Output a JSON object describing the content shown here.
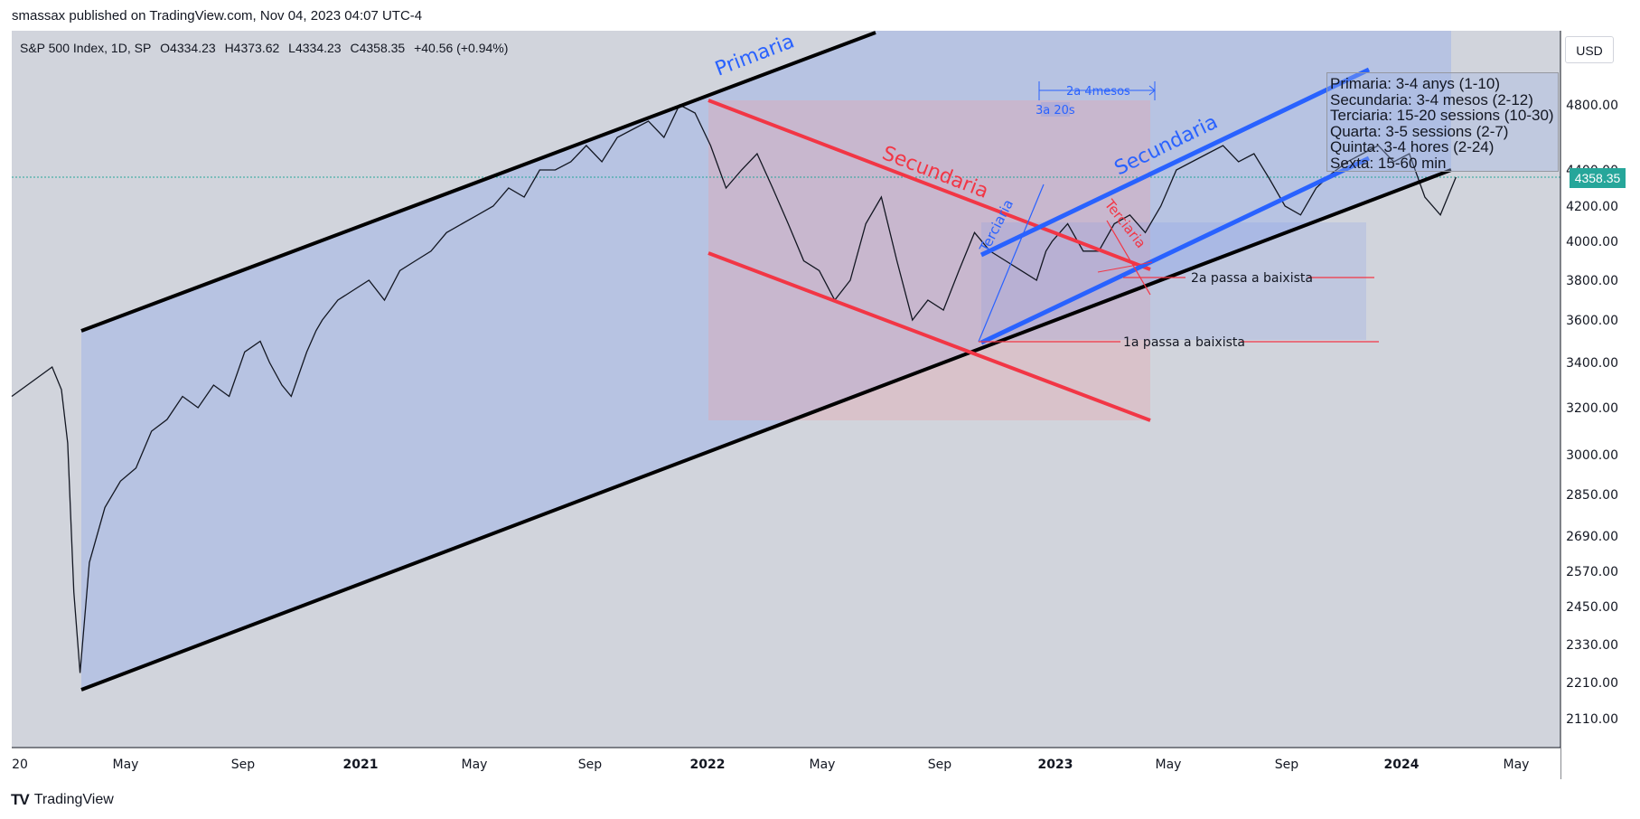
{
  "header": {
    "published_by": "smassax published on TradingView.com, Nov 04, 2023 04:07 UTC-4"
  },
  "legend": {
    "symbol": "S&P 500 Index, 1D, SP",
    "open": "O4334.23",
    "high": "H4373.62",
    "low": "L4334.23",
    "close": "C4358.35",
    "change": "+40.56 (+0.94%)"
  },
  "currency_button": "USD",
  "last_price": "4358.35",
  "info_box": [
    "Primaria: 3-4 anys (1-10)",
    "Secundaria: 3-4 mesos (2-12)",
    "Terciaria: 15-20 sessions (10-30)",
    "Quarta: 3-5 sessions (2-7)",
    "Quinta: 3-4 hores (2-24)",
    "Sexta: 15-60 min"
  ],
  "annotations": {
    "primaria": "Primaria",
    "secundaria_red": "Secundaria",
    "secundaria_blue": "Secundaria",
    "terciaria_blue": "Terciaria",
    "terciaria_red": "Terciaria",
    "range_2a": "2a 4mesos",
    "range_3a": "3a 20s",
    "break_1": "1a passa a baixista",
    "break_2": "2a passa a baixista"
  },
  "colors": {
    "primary": "#000000",
    "secondary_down": "#f23645",
    "secondary_up": "#2962ff",
    "up_badge": "#26a69a",
    "pane_bg": "#d1d4dc"
  },
  "footer": {
    "brand": "TradingView"
  },
  "chart_data": {
    "type": "line",
    "title": "S&P 500 Index, 1D, SP",
    "x_tick_labels": [
      "20",
      "May",
      "Sep",
      "2021",
      "May",
      "Sep",
      "2022",
      "May",
      "Sep",
      "2023",
      "May",
      "Sep",
      "2024",
      "May"
    ],
    "y_tick_labels": [
      "2110.00",
      "2210.00",
      "2330.00",
      "2450.00",
      "2570.00",
      "2690.00",
      "2850.00",
      "3000.00",
      "3200.00",
      "3400.00",
      "3600.00",
      "3800.00",
      "4000.00",
      "4200.00",
      "4400.00",
      "4800.00"
    ],
    "x_unit": "months since Jan 2020",
    "series": [
      {
        "name": "S&P 500",
        "x": [
          0,
          0.5,
          1,
          1.3,
          1.6,
          1.8,
          2.0,
          2.2,
          2.5,
          3,
          3.5,
          4,
          4.5,
          5,
          5.5,
          6,
          6.5,
          7,
          7.5,
          8,
          8.3,
          8.7,
          9,
          9.5,
          9.8,
          10,
          10.5,
          11,
          11.5,
          12,
          12.5,
          13,
          13.5,
          14,
          14.5,
          15,
          15.5,
          16,
          16.5,
          17,
          17.5,
          18,
          18.5,
          19,
          19.5,
          20,
          20.5,
          21,
          21.5,
          22,
          22.5,
          23,
          23.5,
          24,
          24.5,
          25,
          25.5,
          26,
          26.5,
          27,
          27.5,
          28,
          28.5,
          29,
          29.5,
          30,
          30.5,
          31,
          31.5,
          32,
          32.5,
          33,
          33.3,
          33.5,
          34,
          34.5,
          35,
          35.5,
          36,
          36.5,
          37,
          37.5,
          38,
          38.5,
          39,
          39.5,
          40,
          40.5,
          41,
          41.5,
          42,
          42.5,
          43,
          43.5,
          44,
          44.5,
          45,
          45.5,
          46,
          46.5
        ],
        "y": [
          3250,
          3300,
          3350,
          3380,
          3280,
          3050,
          2500,
          2240,
          2600,
          2800,
          2900,
          2950,
          3100,
          3150,
          3250,
          3200,
          3300,
          3250,
          3450,
          3500,
          3400,
          3300,
          3250,
          3450,
          3550,
          3600,
          3700,
          3750,
          3800,
          3700,
          3850,
          3900,
          3950,
          4050,
          4100,
          4150,
          4200,
          4300,
          4250,
          4400,
          4400,
          4450,
          4550,
          4450,
          4600,
          4650,
          4700,
          4600,
          4800,
          4750,
          4550,
          4300,
          4400,
          4500,
          4300,
          4100,
          3900,
          3850,
          3700,
          3800,
          4100,
          4250,
          3900,
          3600,
          3700,
          3650,
          3850,
          4050,
          3950,
          3900,
          3850,
          3800,
          3950,
          4000,
          4100,
          3950,
          3950,
          4100,
          4150,
          4050,
          4200,
          4400,
          4450,
          4500,
          4550,
          4450,
          4500,
          4350,
          4200,
          4150,
          4300,
          4380,
          4450,
          4500,
          4550,
          4450,
          4500,
          4250,
          4150,
          4360
        ]
      }
    ],
    "channels": [
      {
        "name": "Primaria",
        "color": "#000000",
        "upper": [
          [
            2.3,
            4150
          ],
          [
            25,
            4850
          ]
        ],
        "lower": [
          [
            2.3,
            2230
          ],
          [
            46.5,
            4420
          ]
        ]
      },
      {
        "name": "Secundaria",
        "color": "#f23645",
        "upper": [
          [
            24,
            4810
          ],
          [
            33.5,
            3880
          ]
        ],
        "lower": [
          [
            24,
            4000
          ],
          [
            33.5,
            3270
          ]
        ]
      },
      {
        "name": "Secundaria",
        "color": "#2962ff",
        "upper": [
          [
            27.5,
            3970
          ],
          [
            39,
            4950
          ]
        ],
        "lower": [
          [
            27.5,
            3530
          ],
          [
            39,
            4460
          ]
        ]
      }
    ],
    "levels": [
      {
        "label": "1a passa a baixista",
        "value": 3520
      },
      {
        "label": "2a passa a baixista",
        "value": 3820
      }
    ],
    "ylim": [
      2050,
      5000
    ],
    "xlim": [
      0,
      48
    ]
  }
}
